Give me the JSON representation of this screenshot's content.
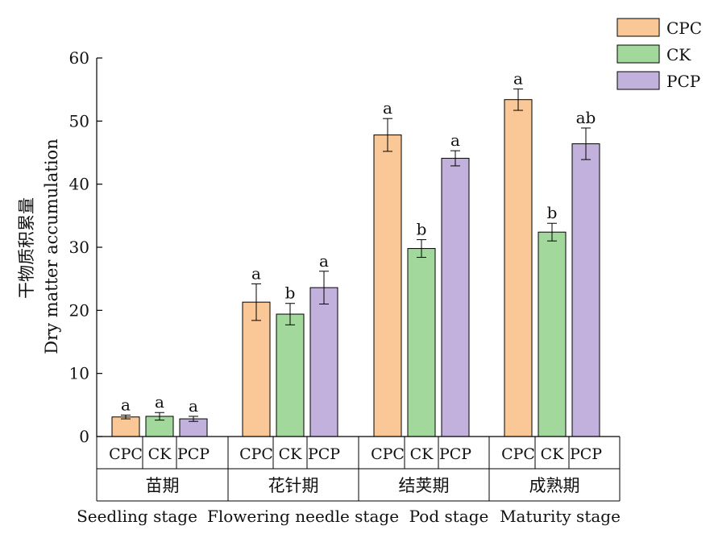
{
  "chart_data": {
    "type": "bar",
    "ylabel_cn": "干物质积累量",
    "ylabel_en": "Dry matter accumulation",
    "xlabel": "",
    "ylim": [
      0,
      60
    ],
    "yticks": [
      0,
      10,
      20,
      30,
      40,
      50,
      60
    ],
    "groups": [
      {
        "name_cn": "苗期",
        "name_en": "Seedling stage",
        "bars": [
          {
            "series": "CPC",
            "value": 3.1,
            "err": 0.3,
            "label": "a"
          },
          {
            "series": "CK",
            "value": 3.2,
            "err": 0.6,
            "label": "a"
          },
          {
            "series": "PCP",
            "value": 2.8,
            "err": 0.4,
            "label": "a"
          }
        ]
      },
      {
        "name_cn": "花针期",
        "name_en": "Flowering needle stage",
        "bars": [
          {
            "series": "CPC",
            "value": 21.3,
            "err": 2.9,
            "label": "a"
          },
          {
            "series": "CK",
            "value": 19.4,
            "err": 1.7,
            "label": "b"
          },
          {
            "series": "PCP",
            "value": 23.6,
            "err": 2.6,
            "label": "a"
          }
        ]
      },
      {
        "name_cn": "结荚期",
        "name_en": "Pod stage",
        "bars": [
          {
            "series": "CPC",
            "value": 47.8,
            "err": 2.6,
            "label": "a"
          },
          {
            "series": "CK",
            "value": 29.8,
            "err": 1.4,
            "label": "b"
          },
          {
            "series": "PCP",
            "value": 44.1,
            "err": 1.2,
            "label": "a"
          }
        ]
      },
      {
        "name_cn": "成熟期",
        "name_en": "Maturity stage",
        "bars": [
          {
            "series": "CPC",
            "value": 53.4,
            "err": 1.7,
            "label": "a"
          },
          {
            "series": "CK",
            "value": 32.4,
            "err": 1.4,
            "label": "b"
          },
          {
            "series": "PCP",
            "value": 46.4,
            "err": 2.5,
            "label": "ab"
          }
        ]
      }
    ],
    "series": [
      {
        "name": "CPC",
        "color": "#f9c896"
      },
      {
        "name": "CK",
        "color": "#a3d89d"
      },
      {
        "name": "PCP",
        "color": "#c2b1dc"
      }
    ],
    "legend_position": "top-right",
    "grid": false
  }
}
